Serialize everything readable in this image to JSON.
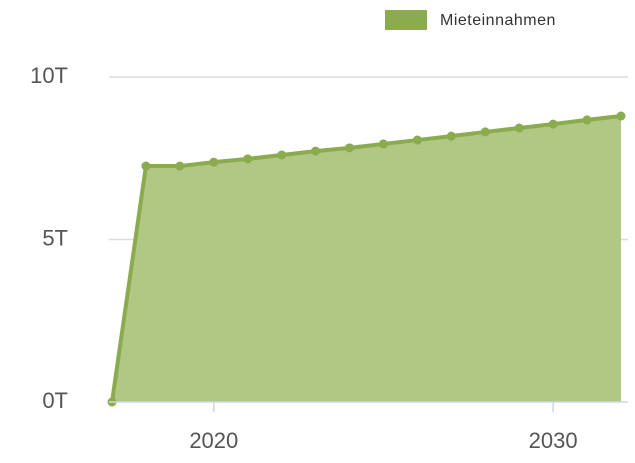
{
  "chart_data": {
    "type": "area",
    "x": [
      2017,
      2018,
      2019,
      2020,
      2021,
      2022,
      2023,
      2024,
      2025,
      2026,
      2027,
      2028,
      2029,
      2030,
      2031,
      2032
    ],
    "series": [
      {
        "name": "Mieteinnahmen",
        "color": "#8aab4e",
        "fill": "#b0c884",
        "values": [
          0,
          7260,
          7260,
          7380,
          7480,
          7600,
          7720,
          7820,
          7940,
          8060,
          8180,
          8310,
          8430,
          8550,
          8680,
          8800
        ]
      }
    ],
    "xlim": [
      2017,
      2032
    ],
    "xticks": [
      2020,
      2030
    ],
    "ylim": [
      0,
      10000
    ],
    "yticks": [
      {
        "value": 0,
        "label": "0T"
      },
      {
        "value": 5000,
        "label": "5T"
      },
      {
        "value": 10000,
        "label": "10T"
      }
    ],
    "grid": true,
    "legend": "top-right"
  }
}
